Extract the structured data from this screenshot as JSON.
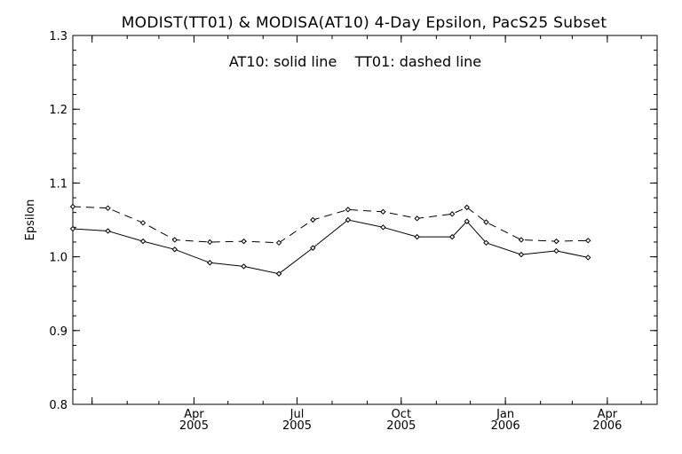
{
  "chart_data": {
    "type": "line",
    "title": "MODIST(TT01) & MODISA(AT10) 4-Day Epsilon, PacS25 Subset",
    "annotation": "AT10: solid line    TT01: dashed line",
    "ylabel": "Epsilon",
    "xlabel": "",
    "ylim": [
      0.8,
      1.3
    ],
    "yticks": [
      {
        "value": 0.8,
        "label": "0.8"
      },
      {
        "value": 0.9,
        "label": "0.9"
      },
      {
        "value": 1.0,
        "label": "1.0"
      },
      {
        "value": 1.1,
        "label": "1.1"
      },
      {
        "value": 1.2,
        "label": "1.2"
      },
      {
        "value": 1.3,
        "label": "1.3"
      }
    ],
    "xlim": [
      "2004-12-15",
      "2006-05-15"
    ],
    "xticks": [
      {
        "date": "2005-01-01",
        "month": "",
        "year": ""
      },
      {
        "date": "2005-04-01",
        "month": "Apr",
        "year": "2005"
      },
      {
        "date": "2005-07-01",
        "month": "Jul",
        "year": "2005"
      },
      {
        "date": "2005-10-01",
        "month": "Oct",
        "year": "2005"
      },
      {
        "date": "2006-01-01",
        "month": "Jan",
        "year": "2006"
      },
      {
        "date": "2006-04-01",
        "month": "Apr",
        "year": "2006"
      }
    ],
    "grid": false,
    "series": [
      {
        "name": "AT10",
        "style": "solid",
        "color": "#000000",
        "points": [
          {
            "x": "2004-12-15",
            "y": 1.038
          },
          {
            "x": "2005-01-15",
            "y": 1.035
          },
          {
            "x": "2005-02-15",
            "y": 1.021
          },
          {
            "x": "2005-03-15",
            "y": 1.01
          },
          {
            "x": "2005-04-15",
            "y": 0.992
          },
          {
            "x": "2005-05-15",
            "y": 0.987
          },
          {
            "x": "2005-06-15",
            "y": 0.977
          },
          {
            "x": "2005-07-15",
            "y": 1.012
          },
          {
            "x": "2005-08-15",
            "y": 1.05
          },
          {
            "x": "2005-09-15",
            "y": 1.04
          },
          {
            "x": "2005-10-15",
            "y": 1.027
          },
          {
            "x": "2005-11-15",
            "y": 1.027
          },
          {
            "x": "2005-11-28",
            "y": 1.048
          },
          {
            "x": "2005-12-15",
            "y": 1.019
          },
          {
            "x": "2006-01-15",
            "y": 1.003
          },
          {
            "x": "2006-02-15",
            "y": 1.008
          },
          {
            "x": "2006-03-15",
            "y": 0.999
          }
        ]
      },
      {
        "name": "TT01",
        "style": "dashed",
        "color": "#000000",
        "points": [
          {
            "x": "2004-12-15",
            "y": 1.068
          },
          {
            "x": "2005-01-15",
            "y": 1.066
          },
          {
            "x": "2005-02-15",
            "y": 1.046
          },
          {
            "x": "2005-03-15",
            "y": 1.023
          },
          {
            "x": "2005-04-15",
            "y": 1.02
          },
          {
            "x": "2005-05-15",
            "y": 1.021
          },
          {
            "x": "2005-06-15",
            "y": 1.019
          },
          {
            "x": "2005-07-15",
            "y": 1.05
          },
          {
            "x": "2005-08-15",
            "y": 1.064
          },
          {
            "x": "2005-09-15",
            "y": 1.061
          },
          {
            "x": "2005-10-15",
            "y": 1.052
          },
          {
            "x": "2005-11-15",
            "y": 1.058
          },
          {
            "x": "2005-11-28",
            "y": 1.067
          },
          {
            "x": "2005-12-15",
            "y": 1.047
          },
          {
            "x": "2006-01-15",
            "y": 1.023
          },
          {
            "x": "2006-02-15",
            "y": 1.021
          },
          {
            "x": "2006-03-15",
            "y": 1.022
          }
        ]
      }
    ]
  }
}
